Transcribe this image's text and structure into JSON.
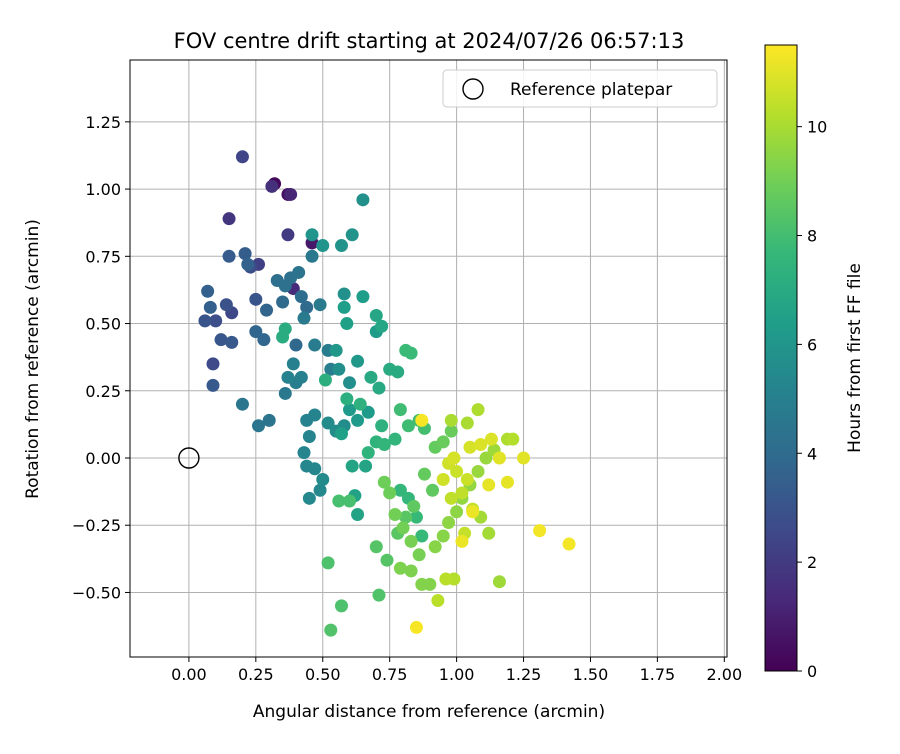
{
  "chart_data": {
    "type": "scatter",
    "title": "FOV centre drift starting at 2024/07/26 06:57:13",
    "xlabel": "Angular distance from reference (arcmin)",
    "ylabel": "Rotation from reference (arcmin)",
    "xlim": [
      -0.22,
      2.01
    ],
    "ylim": [
      -0.74,
      1.48
    ],
    "x_ticks": [
      0.0,
      0.25,
      0.5,
      0.75,
      1.0,
      1.25,
      1.5,
      1.75,
      2.0
    ],
    "x_tick_labels": [
      "0.00",
      "0.25",
      "0.50",
      "0.75",
      "1.00",
      "1.25",
      "1.50",
      "1.75",
      "2.00"
    ],
    "y_ticks": [
      -0.5,
      -0.25,
      0.0,
      0.25,
      0.5,
      0.75,
      1.0,
      1.25
    ],
    "y_tick_labels": [
      "−0.50",
      "−0.25",
      "0.00",
      "0.25",
      "0.50",
      "0.75",
      "1.00",
      "1.25"
    ],
    "grid": true,
    "legend": {
      "placement": "top-right",
      "label": "Reference platepar"
    },
    "reference_point": {
      "x": 0.0,
      "y": 0.0
    },
    "colorbar": {
      "label": "Hours from first FF file",
      "min": 0,
      "max": 11.5,
      "ticks": [
        0,
        2,
        4,
        6,
        8,
        10
      ],
      "tick_labels": [
        "0",
        "2",
        "4",
        "6",
        "8",
        "10"
      ],
      "colormap": [
        "#440154",
        "#482878",
        "#3e4989",
        "#31688e",
        "#26828e",
        "#1f9e89",
        "#35b779",
        "#6ece58",
        "#b5de2b",
        "#fde725"
      ]
    },
    "points": [
      [
        0.32,
        1.02,
        0.2
      ],
      [
        0.37,
        0.98,
        0.5
      ],
      [
        0.46,
        0.8,
        0.8
      ],
      [
        0.38,
        0.98,
        1.2
      ],
      [
        0.39,
        0.63,
        1.4
      ],
      [
        0.31,
        1.01,
        1.6
      ],
      [
        0.15,
        0.89,
        1.8
      ],
      [
        0.37,
        0.83,
        2.0
      ],
      [
        0.26,
        0.72,
        2.2
      ],
      [
        0.2,
        1.12,
        2.4
      ],
      [
        0.16,
        0.54,
        2.5
      ],
      [
        0.09,
        0.35,
        2.6
      ],
      [
        0.23,
        0.71,
        2.7
      ],
      [
        0.1,
        0.51,
        2.8
      ],
      [
        0.14,
        0.57,
        2.9
      ],
      [
        0.25,
        0.59,
        3.0
      ],
      [
        0.06,
        0.51,
        3.0
      ],
      [
        0.12,
        0.44,
        3.1
      ],
      [
        0.16,
        0.43,
        3.2
      ],
      [
        0.09,
        0.27,
        3.2
      ],
      [
        0.15,
        0.75,
        3.3
      ],
      [
        0.21,
        0.76,
        3.4
      ],
      [
        0.07,
        0.62,
        3.5
      ],
      [
        0.08,
        0.56,
        3.5
      ],
      [
        0.22,
        0.72,
        3.6
      ],
      [
        0.29,
        0.55,
        3.7
      ],
      [
        0.25,
        0.47,
        3.8
      ],
      [
        0.28,
        0.44,
        3.8
      ],
      [
        0.4,
        0.42,
        3.9
      ],
      [
        0.44,
        0.56,
        4.0
      ],
      [
        0.35,
        0.58,
        4.0
      ],
      [
        0.42,
        0.6,
        4.1
      ],
      [
        0.33,
        0.66,
        4.2
      ],
      [
        0.36,
        0.64,
        4.3
      ],
      [
        0.38,
        0.67,
        4.3
      ],
      [
        0.41,
        0.69,
        4.4
      ],
      [
        0.3,
        0.14,
        4.4
      ],
      [
        0.26,
        0.12,
        4.5
      ],
      [
        0.2,
        0.2,
        4.5
      ],
      [
        0.36,
        0.24,
        4.6
      ],
      [
        0.46,
        0.75,
        4.6
      ],
      [
        0.49,
        0.57,
        4.7
      ],
      [
        0.43,
        0.52,
        4.7
      ],
      [
        0.47,
        0.42,
        4.8
      ],
      [
        0.52,
        0.4,
        4.8
      ],
      [
        0.53,
        0.33,
        4.9
      ],
      [
        0.4,
        0.28,
        4.9
      ],
      [
        0.42,
        0.3,
        5.0
      ],
      [
        0.39,
        0.35,
        5.0
      ],
      [
        0.37,
        0.3,
        5.1
      ],
      [
        0.44,
        0.14,
        5.1
      ],
      [
        0.45,
        0.08,
        5.2
      ],
      [
        0.47,
        0.16,
        5.2
      ],
      [
        0.43,
        0.02,
        5.2
      ],
      [
        0.44,
        -0.03,
        5.3
      ],
      [
        0.47,
        -0.04,
        5.3
      ],
      [
        0.45,
        -0.15,
        5.4
      ],
      [
        0.49,
        -0.12,
        5.4
      ],
      [
        0.5,
        -0.08,
        5.5
      ],
      [
        0.52,
        0.13,
        5.5
      ],
      [
        0.55,
        0.1,
        5.6
      ],
      [
        0.58,
        0.12,
        5.6
      ],
      [
        0.6,
        0.28,
        5.7
      ],
      [
        0.56,
        0.33,
        5.7
      ],
      [
        0.58,
        0.61,
        5.8
      ],
      [
        0.65,
        0.96,
        5.8
      ],
      [
        0.61,
        0.83,
        5.9
      ],
      [
        0.57,
        0.79,
        5.9
      ],
      [
        0.5,
        0.79,
        6.0
      ],
      [
        0.46,
        0.83,
        6.0
      ],
      [
        0.55,
        0.4,
        6.1
      ],
      [
        0.63,
        0.36,
        6.1
      ],
      [
        0.6,
        0.18,
        6.2
      ],
      [
        0.63,
        0.14,
        6.2
      ],
      [
        0.67,
        0.17,
        6.3
      ],
      [
        0.7,
        0.47,
        6.3
      ],
      [
        0.65,
        0.6,
        6.4
      ],
      [
        0.58,
        0.56,
        6.4
      ],
      [
        0.59,
        0.5,
        6.5
      ],
      [
        0.57,
        0.09,
        6.5
      ],
      [
        0.63,
        -0.21,
        6.6
      ],
      [
        0.62,
        -0.14,
        6.6
      ],
      [
        0.61,
        -0.03,
        6.7
      ],
      [
        0.66,
        -0.03,
        6.7
      ],
      [
        0.7,
        0.53,
        6.8
      ],
      [
        0.72,
        0.49,
        6.8
      ],
      [
        0.68,
        0.3,
        6.9
      ],
      [
        0.71,
        0.26,
        6.9
      ],
      [
        0.75,
        0.33,
        7.0
      ],
      [
        0.78,
        0.32,
        7.0
      ],
      [
        0.36,
        0.48,
        7.1
      ],
      [
        0.35,
        0.45,
        7.1
      ],
      [
        0.51,
        0.29,
        7.2
      ],
      [
        0.59,
        0.22,
        7.2
      ],
      [
        0.64,
        0.2,
        7.3
      ],
      [
        0.72,
        0.12,
        7.3
      ],
      [
        0.7,
        0.06,
        7.4
      ],
      [
        0.67,
        0.02,
        7.4
      ],
      [
        0.73,
        0.05,
        7.5
      ],
      [
        0.77,
        0.07,
        7.5
      ],
      [
        0.79,
        -0.12,
        7.6
      ],
      [
        0.82,
        -0.15,
        7.6
      ],
      [
        0.85,
        -0.22,
        7.7
      ],
      [
        0.87,
        -0.29,
        7.7
      ],
      [
        0.83,
        0.39,
        7.8
      ],
      [
        0.81,
        0.4,
        7.8
      ],
      [
        0.79,
        0.18,
        7.9
      ],
      [
        0.82,
        0.12,
        7.9
      ],
      [
        0.86,
        0.14,
        8.0
      ],
      [
        0.88,
        0.11,
        8.0
      ],
      [
        0.6,
        -0.16,
        8.1
      ],
      [
        0.56,
        -0.16,
        8.1
      ],
      [
        0.52,
        -0.39,
        8.2
      ],
      [
        0.57,
        -0.55,
        8.2
      ],
      [
        0.53,
        -0.64,
        8.3
      ],
      [
        0.71,
        -0.51,
        8.3
      ],
      [
        0.74,
        -0.38,
        8.4
      ],
      [
        0.7,
        -0.33,
        8.4
      ],
      [
        0.78,
        -0.28,
        8.5
      ],
      [
        0.81,
        -0.22,
        8.5
      ],
      [
        0.84,
        -0.18,
        8.6
      ],
      [
        0.91,
        -0.12,
        8.6
      ],
      [
        0.88,
        -0.06,
        8.7
      ],
      [
        0.92,
        0.04,
        8.7
      ],
      [
        0.95,
        0.06,
        8.8
      ],
      [
        0.98,
        0.1,
        8.8
      ],
      [
        0.73,
        -0.09,
        8.9
      ],
      [
        0.75,
        -0.13,
        8.9
      ],
      [
        0.77,
        -0.21,
        9.0
      ],
      [
        0.8,
        -0.26,
        9.0
      ],
      [
        0.83,
        -0.31,
        9.1
      ],
      [
        0.86,
        -0.36,
        9.1
      ],
      [
        0.79,
        -0.41,
        9.2
      ],
      [
        0.83,
        -0.42,
        9.2
      ],
      [
        0.87,
        -0.47,
        9.3
      ],
      [
        0.9,
        -0.47,
        9.3
      ],
      [
        0.92,
        -0.33,
        9.4
      ],
      [
        0.95,
        -0.29,
        9.4
      ],
      [
        0.97,
        -0.24,
        9.5
      ],
      [
        1.0,
        -0.2,
        9.5
      ],
      [
        1.02,
        -0.15,
        9.6
      ],
      [
        1.05,
        -0.1,
        9.6
      ],
      [
        1.08,
        -0.05,
        9.7
      ],
      [
        1.11,
        0.0,
        9.7
      ],
      [
        1.14,
        0.03,
        9.8
      ],
      [
        1.16,
        -0.46,
        9.8
      ],
      [
        1.12,
        -0.28,
        9.9
      ],
      [
        1.09,
        -0.22,
        9.9
      ],
      [
        0.98,
        0.14,
        10.0
      ],
      [
        1.04,
        0.13,
        10.0
      ],
      [
        1.08,
        0.18,
        10.1
      ],
      [
        1.19,
        0.07,
        10.1
      ],
      [
        1.21,
        0.07,
        10.2
      ],
      [
        0.99,
        -0.45,
        10.2
      ],
      [
        0.93,
        -0.53,
        10.3
      ],
      [
        0.96,
        -0.45,
        10.3
      ],
      [
        0.98,
        -0.15,
        10.4
      ],
      [
        1.02,
        -0.13,
        10.4
      ],
      [
        1.06,
        -0.19,
        10.5
      ],
      [
        1.03,
        -0.28,
        10.5
      ],
      [
        1.04,
        -0.08,
        10.6
      ],
      [
        1.0,
        -0.05,
        10.6
      ],
      [
        0.97,
        -0.02,
        10.7
      ],
      [
        0.95,
        -0.08,
        10.7
      ],
      [
        0.99,
        0.0,
        10.8
      ],
      [
        1.05,
        0.04,
        10.8
      ],
      [
        1.09,
        0.05,
        10.9
      ],
      [
        1.13,
        0.07,
        10.9
      ],
      [
        1.16,
        0.0,
        11.0
      ],
      [
        1.25,
        0.0,
        11.0
      ],
      [
        1.19,
        -0.09,
        11.1
      ],
      [
        1.12,
        -0.1,
        11.1
      ],
      [
        1.06,
        -0.2,
        11.2
      ],
      [
        1.02,
        -0.31,
        11.2
      ],
      [
        1.31,
        -0.27,
        11.3
      ],
      [
        1.42,
        -0.32,
        11.3
      ],
      [
        0.85,
        -0.63,
        11.4
      ],
      [
        0.87,
        0.14,
        11.4
      ]
    ]
  }
}
